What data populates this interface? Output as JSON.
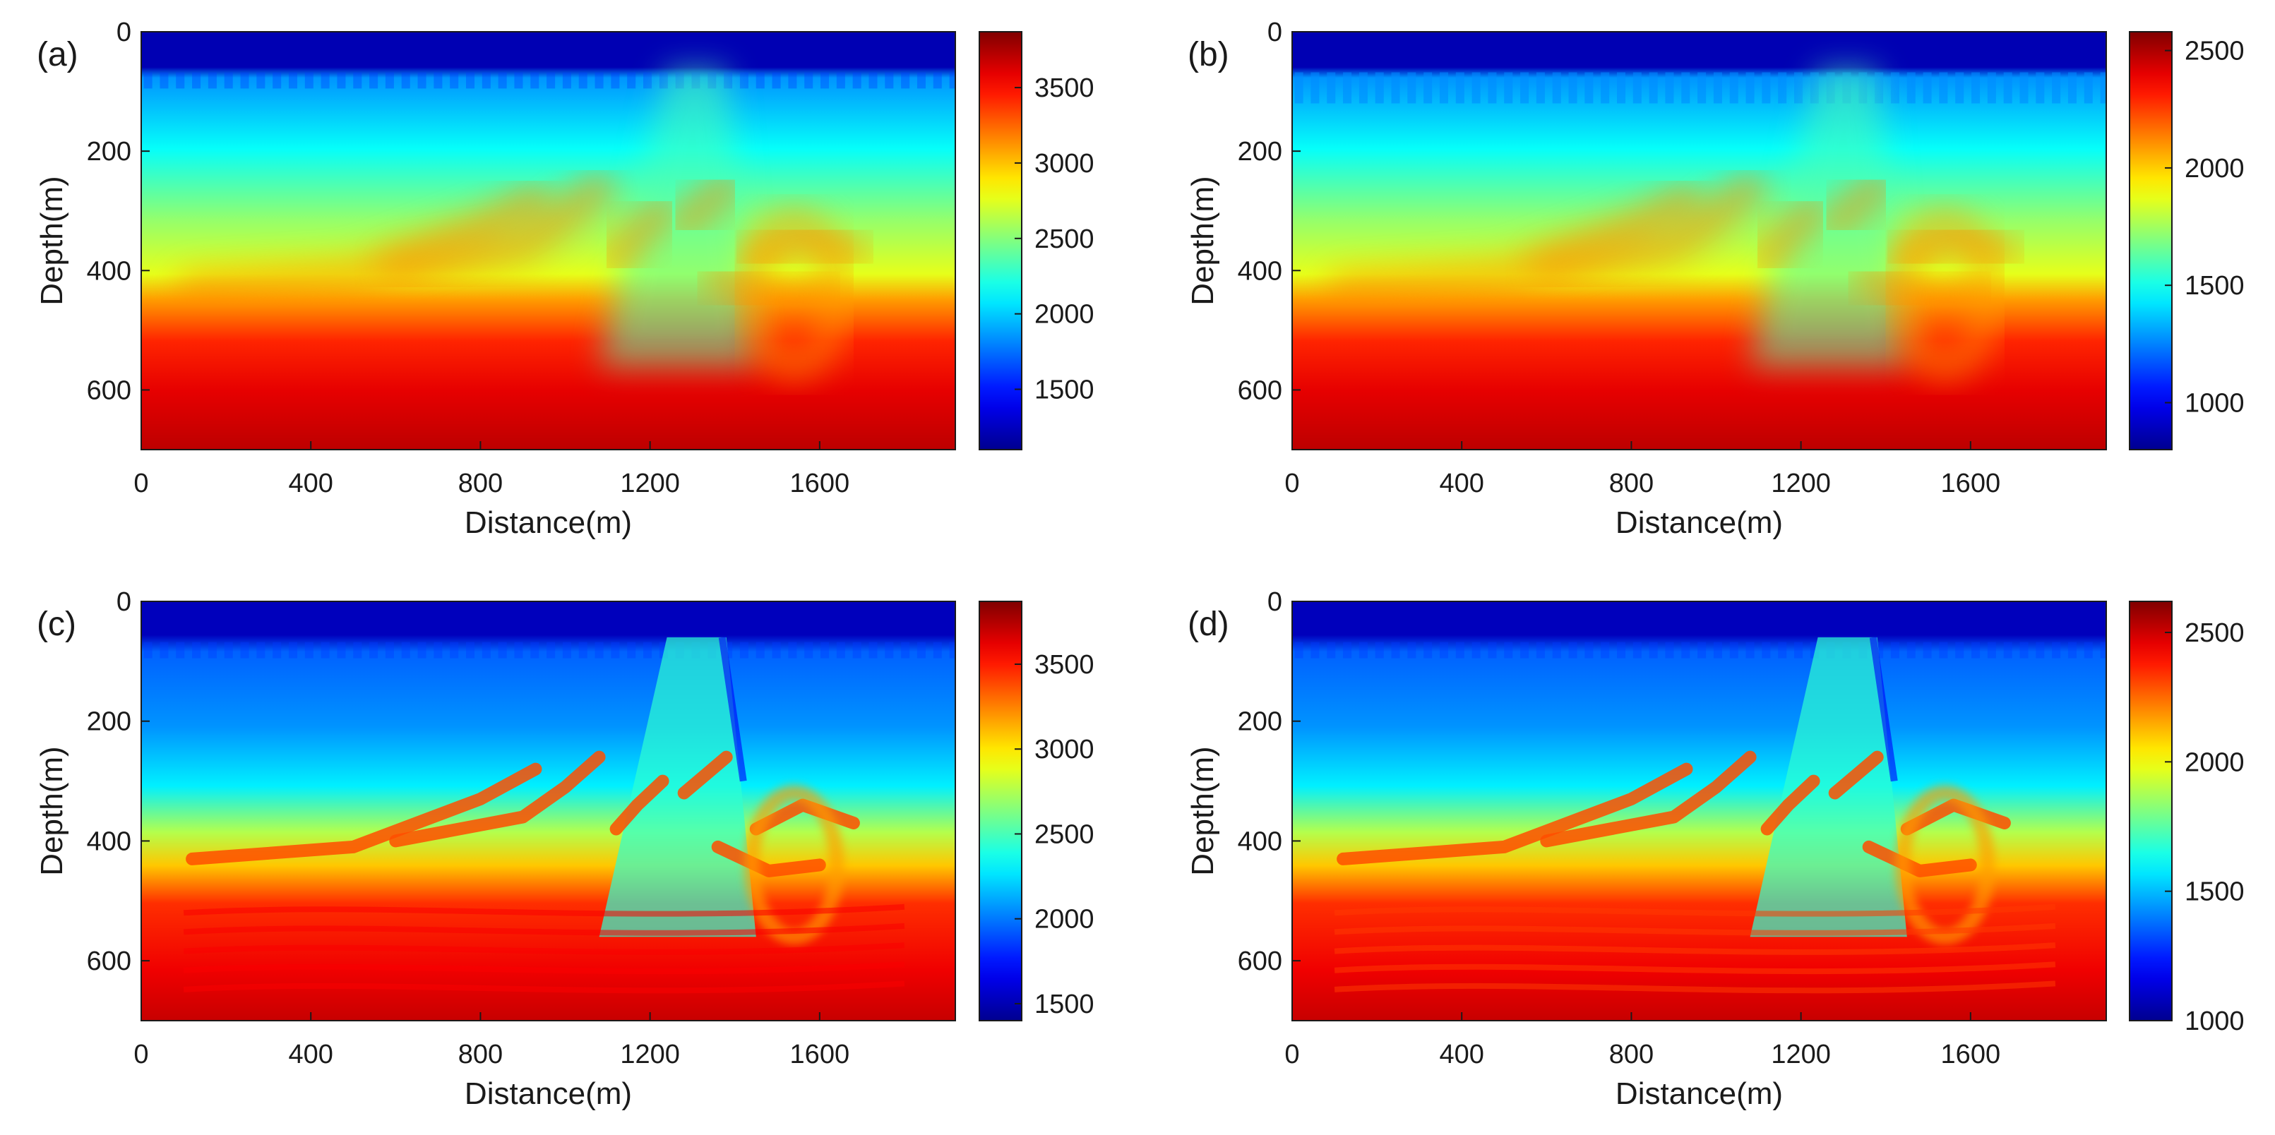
{
  "chart_data": [
    {
      "type": "heatmap",
      "panel_label": "(a)",
      "xlabel": "Distance(m)",
      "ylabel": "Depth(m)",
      "xlim": [
        0,
        1920
      ],
      "ylim": [
        700,
        0
      ],
      "xticks": [
        0,
        400,
        800,
        1200,
        1600
      ],
      "yticks": [
        0,
        200,
        400,
        600
      ],
      "colorbar": {
        "colormap": "jet",
        "range": [
          1100,
          3870
        ],
        "ticks": [
          1500,
          2000,
          2500,
          3000,
          3500
        ]
      },
      "value_range_shown": [
        1100,
        3870
      ]
    },
    {
      "type": "heatmap",
      "panel_label": "(b)",
      "xlabel": "Distance(m)",
      "ylabel": "Depth(m)",
      "xlim": [
        0,
        1920
      ],
      "ylim": [
        700,
        0
      ],
      "xticks": [
        0,
        400,
        800,
        1200,
        1600
      ],
      "yticks": [
        0,
        200,
        400,
        600
      ],
      "colorbar": {
        "colormap": "jet",
        "range": [
          800,
          2580
        ],
        "ticks": [
          1000,
          1500,
          2000,
          2500
        ]
      },
      "value_range_shown": [
        800,
        2580
      ]
    },
    {
      "type": "heatmap",
      "panel_label": "(c)",
      "xlabel": "Distance(m)",
      "ylabel": "Depth(m)",
      "xlim": [
        0,
        1920
      ],
      "ylim": [
        700,
        0
      ],
      "xticks": [
        0,
        400,
        800,
        1200,
        1600
      ],
      "yticks": [
        0,
        200,
        400,
        600
      ],
      "colorbar": {
        "colormap": "jet",
        "range": [
          1400,
          3870
        ],
        "ticks": [
          1500,
          2000,
          2500,
          3000,
          3500
        ]
      },
      "value_range_shown": [
        1400,
        3870
      ]
    },
    {
      "type": "heatmap",
      "panel_label": "(d)",
      "xlabel": "Distance(m)",
      "ylabel": "Depth(m)",
      "xlim": [
        0,
        1920
      ],
      "ylim": [
        700,
        0
      ],
      "xticks": [
        0,
        400,
        800,
        1200,
        1600
      ],
      "yticks": [
        0,
        200,
        400,
        600
      ],
      "colorbar": {
        "colormap": "jet",
        "range": [
          1000,
          2620
        ],
        "ticks": [
          1000,
          1500,
          2000,
          2500
        ]
      },
      "value_range_shown": [
        1000,
        2620
      ]
    }
  ],
  "colors": {
    "jet": [
      "#00008f",
      "#0000ff",
      "#0080ff",
      "#00ffff",
      "#80ff80",
      "#ffff00",
      "#ff8000",
      "#ff0000",
      "#800000"
    ],
    "axis": "#1a1a1a"
  }
}
